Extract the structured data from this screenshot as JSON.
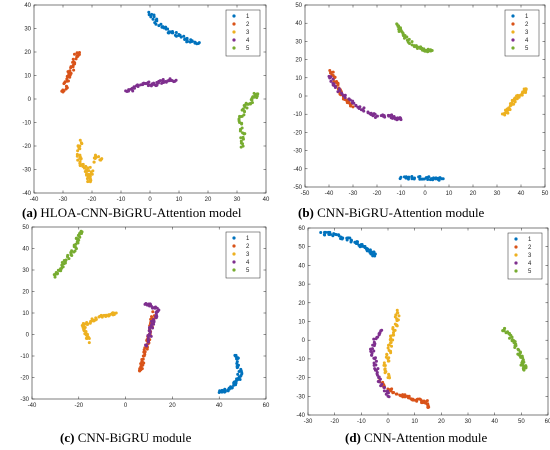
{
  "chart_data": [
    {
      "type": "scatter",
      "caption_letter": "(a)",
      "caption_text": "HLOA-CNN-BiGRU-Attention model",
      "xlim": [
        -40,
        40
      ],
      "ylim": [
        -40,
        40
      ],
      "xticks": [
        -40,
        -30,
        -20,
        -10,
        0,
        10,
        20,
        30,
        40
      ],
      "yticks": [
        -40,
        -30,
        -20,
        -10,
        0,
        10,
        20,
        30,
        40
      ],
      "grid": false,
      "legend_position": "top-right",
      "series": [
        {
          "name": "1",
          "color": "#0072BD",
          "path": [
            [
              0,
              37
            ],
            [
              2,
              33
            ],
            [
              5,
              30
            ],
            [
              8,
              28
            ],
            [
              11,
              26
            ],
            [
              14,
              24.5
            ],
            [
              17,
              24
            ]
          ]
        },
        {
          "name": "2",
          "color": "#D95319",
          "path": [
            [
              -25,
              20
            ],
            [
              -26,
              17
            ],
            [
              -27,
              13
            ],
            [
              -28,
              10
            ],
            [
              -29,
              6
            ],
            [
              -30,
              3
            ]
          ]
        },
        {
          "name": "3",
          "color": "#EDB120",
          "path": [
            [
              -24,
              -18
            ],
            [
              -25,
              -23
            ],
            [
              -24,
              -27
            ],
            [
              -22,
              -30
            ],
            [
              -21,
              -33
            ],
            [
              -21,
              -35
            ],
            [
              -19,
              -24
            ],
            [
              -17,
              -26
            ]
          ]
        },
        {
          "name": "4",
          "color": "#7E2F8E",
          "path": [
            [
              -8,
              3
            ],
            [
              -5,
              5
            ],
            [
              -2,
              7
            ],
            [
              0,
              6
            ],
            [
              3,
              7
            ],
            [
              6,
              8
            ],
            [
              9,
              8
            ]
          ]
        },
        {
          "name": "5",
          "color": "#77AC30",
          "path": [
            [
              32,
              -20
            ],
            [
              32,
              -15
            ],
            [
              31,
              -10
            ],
            [
              32,
              -5
            ],
            [
              34,
              -2
            ],
            [
              36,
              1
            ],
            [
              37,
              2
            ]
          ]
        }
      ]
    },
    {
      "type": "scatter",
      "caption_letter": "(b)",
      "caption_text": "CNN-BiGRU-Attention module",
      "xlim": [
        -50,
        50
      ],
      "ylim": [
        -50,
        50
      ],
      "xticks": [
        -50,
        -40,
        -30,
        -20,
        -10,
        0,
        10,
        20,
        30,
        40,
        50
      ],
      "yticks": [
        -50,
        -40,
        -30,
        -20,
        -10,
        0,
        10,
        20,
        30,
        40,
        50
      ],
      "grid": false,
      "legend_position": "top-right",
      "series": [
        {
          "name": "1",
          "color": "#0072BD",
          "path": [
            [
              -10,
              -45
            ],
            [
              -5,
              -45
            ],
            [
              0,
              -45
            ],
            [
              5,
              -45.5
            ],
            [
              7,
              -45.5
            ]
          ]
        },
        {
          "name": "2",
          "color": "#D95319",
          "path": [
            [
              -39,
              14
            ],
            [
              -38,
              9
            ],
            [
              -36,
              5
            ],
            [
              -35,
              1
            ],
            [
              -33,
              -2
            ],
            [
              -30,
              -6
            ]
          ]
        },
        {
          "name": "3",
          "color": "#EDB120",
          "path": [
            [
              33,
              -10
            ],
            [
              35,
              -7
            ],
            [
              37,
              -3
            ],
            [
              39,
              0
            ],
            [
              41,
              2
            ],
            [
              42,
              4
            ]
          ]
        },
        {
          "name": "4",
          "color": "#7E2F8E",
          "path": [
            [
              -40,
              11
            ],
            [
              -37,
              5
            ],
            [
              -33,
              -1
            ],
            [
              -28,
              -6
            ],
            [
              -24,
              -9
            ],
            [
              -20,
              -11
            ],
            [
              -15,
              -11
            ],
            [
              -12,
              -12
            ],
            [
              -10,
              -13
            ]
          ]
        },
        {
          "name": "5",
          "color": "#77AC30",
          "path": [
            [
              -12,
              40
            ],
            [
              -10,
              36
            ],
            [
              -8,
              32
            ],
            [
              -5,
              28
            ],
            [
              -2,
              26
            ],
            [
              0,
              25
            ],
            [
              3,
              25
            ]
          ]
        }
      ]
    },
    {
      "type": "scatter",
      "caption_letter": "(c)",
      "caption_text": "CNN-BiGRU module",
      "xlim": [
        -40,
        60
      ],
      "ylim": [
        -30,
        50
      ],
      "xticks": [
        -40,
        -20,
        0,
        20,
        40,
        60
      ],
      "yticks": [
        -30,
        -20,
        -10,
        0,
        10,
        20,
        30,
        40,
        50
      ],
      "grid": false,
      "legend_position": "top-right",
      "series": [
        {
          "name": "1",
          "color": "#0072BD",
          "path": [
            [
              47,
              -9
            ],
            [
              48,
              -13
            ],
            [
              49,
              -18
            ],
            [
              48,
              -21
            ],
            [
              46,
              -24
            ],
            [
              43,
              -26
            ],
            [
              40,
              -27
            ]
          ]
        },
        {
          "name": "2",
          "color": "#D95319",
          "path": [
            [
              12,
              10
            ],
            [
              11,
              5
            ],
            [
              10,
              0
            ],
            [
              9,
              -5
            ],
            [
              8,
              -10
            ],
            [
              7,
              -15
            ],
            [
              6,
              -17
            ]
          ]
        },
        {
          "name": "3",
          "color": "#EDB120",
          "path": [
            [
              -16,
              -3
            ],
            [
              -17,
              1
            ],
            [
              -18,
              4
            ],
            [
              -15,
              6
            ],
            [
              -11,
              8
            ],
            [
              -7,
              9
            ],
            [
              -4,
              10
            ]
          ]
        },
        {
          "name": "4",
          "color": "#7E2F8E",
          "path": [
            [
              9,
              14
            ],
            [
              12,
              13
            ],
            [
              14,
              11
            ],
            [
              12,
              7
            ],
            [
              11,
              3
            ],
            [
              10,
              -1
            ],
            [
              9,
              -5
            ]
          ]
        },
        {
          "name": "5",
          "color": "#77AC30",
          "path": [
            [
              -30,
              27
            ],
            [
              -28,
              30
            ],
            [
              -26,
              34
            ],
            [
              -23,
              38
            ],
            [
              -21,
              42
            ],
            [
              -20,
              46
            ],
            [
              -19,
              48
            ]
          ]
        }
      ]
    },
    {
      "type": "scatter",
      "caption_letter": "(d)",
      "caption_text": "CNN-Attention module",
      "xlim": [
        -30,
        60
      ],
      "ylim": [
        -40,
        60
      ],
      "xticks": [
        -30,
        -20,
        -10,
        0,
        10,
        20,
        30,
        40,
        50,
        60
      ],
      "yticks": [
        -40,
        -30,
        -20,
        -10,
        0,
        10,
        20,
        30,
        40,
        50,
        60
      ],
      "grid": false,
      "legend_position": "top-right",
      "series": [
        {
          "name": "1",
          "color": "#0072BD",
          "path": [
            [
              -25,
              57
            ],
            [
              -21,
              57
            ],
            [
              -17,
              55
            ],
            [
              -13,
              53
            ],
            [
              -10,
              51
            ],
            [
              -8,
              49
            ],
            [
              -6,
              47
            ],
            [
              -5,
              45
            ]
          ]
        },
        {
          "name": "2",
          "color": "#D95319",
          "path": [
            [
              -3,
              -22
            ],
            [
              0,
              -26
            ],
            [
              4,
              -29
            ],
            [
              8,
              -31
            ],
            [
              11,
              -32
            ],
            [
              14,
              -33
            ],
            [
              15,
              -36
            ]
          ]
        },
        {
          "name": "3",
          "color": "#EDB120",
          "path": [
            [
              4,
              16
            ],
            [
              3,
              10
            ],
            [
              2,
              4
            ],
            [
              1,
              -2
            ],
            [
              0,
              -8
            ],
            [
              -1,
              -15
            ],
            [
              0,
              -20
            ]
          ]
        },
        {
          "name": "4",
          "color": "#7E2F8E",
          "path": [
            [
              -3,
              5
            ],
            [
              -5,
              0
            ],
            [
              -6,
              -6
            ],
            [
              -5,
              -12
            ],
            [
              -4,
              -18
            ],
            [
              -2,
              -25
            ],
            [
              0,
              -30
            ]
          ]
        },
        {
          "name": "5",
          "color": "#77AC30",
          "path": [
            [
              43,
              6
            ],
            [
              45,
              3
            ],
            [
              47,
              -1
            ],
            [
              49,
              -6
            ],
            [
              50,
              -10
            ],
            [
              51,
              -14
            ],
            [
              51,
              -16
            ]
          ]
        }
      ]
    }
  ]
}
